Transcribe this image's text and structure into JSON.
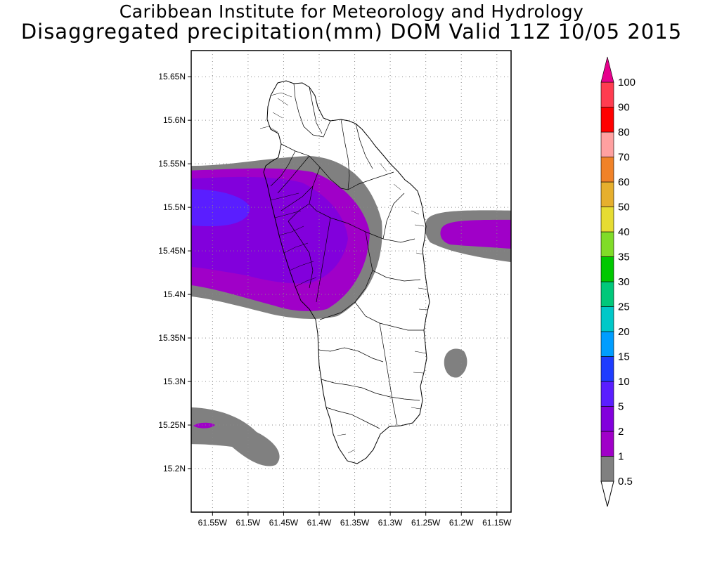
{
  "title": {
    "line1": "Caribbean Institute for Meteorology and Hydrology",
    "line2": "Disaggregated precipitation(mm) DOM Valid 11Z 10/05 2015"
  },
  "map": {
    "lon_range": [
      -61.58,
      -61.13
    ],
    "lat_range": [
      15.15,
      15.68
    ],
    "lat_ticks": [
      {
        "value": 15.65,
        "label": "15.65N"
      },
      {
        "value": 15.6,
        "label": "15.6N"
      },
      {
        "value": 15.55,
        "label": "15.55N"
      },
      {
        "value": 15.5,
        "label": "15.5N"
      },
      {
        "value": 15.45,
        "label": "15.45N"
      },
      {
        "value": 15.4,
        "label": "15.4N"
      },
      {
        "value": 15.35,
        "label": "15.35N"
      },
      {
        "value": 15.3,
        "label": "15.3N"
      },
      {
        "value": 15.25,
        "label": "15.25N"
      },
      {
        "value": 15.2,
        "label": "15.2N"
      }
    ],
    "lon_ticks": [
      {
        "value": -61.55,
        "label": "61.55W"
      },
      {
        "value": -61.5,
        "label": "61.5W"
      },
      {
        "value": -61.45,
        "label": "61.45W"
      },
      {
        "value": -61.4,
        "label": "61.4W"
      },
      {
        "value": -61.35,
        "label": "61.35W"
      },
      {
        "value": -61.3,
        "label": "61.3W"
      },
      {
        "value": -61.25,
        "label": "61.25W"
      },
      {
        "value": -61.2,
        "label": "61.2W"
      },
      {
        "value": -61.15,
        "label": "61.15W"
      }
    ],
    "grid": true,
    "island": "Dominica"
  },
  "colorbar": {
    "position": "right",
    "levels": [
      "0.5",
      "1",
      "2",
      "5",
      "10",
      "15",
      "20",
      "25",
      "30",
      "35",
      "40",
      "50",
      "60",
      "70",
      "80",
      "90",
      "100"
    ],
    "colors": [
      "#808080",
      "#a000c8",
      "#8200dc",
      "#5a1eff",
      "#1e3cff",
      "#009dff",
      "#00c8c8",
      "#00c87a",
      "#00c800",
      "#80dc28",
      "#e6dc32",
      "#e6af2d",
      "#f08228",
      "#ffa0a0",
      "#ff0000",
      "#ff3c50",
      "#e6008c"
    ]
  },
  "colors": {
    "band_0_5": "#808080",
    "band_1": "#a000c8",
    "band_2": "#8200dc",
    "band_5": "#5a1eff",
    "coastline": "#000000"
  }
}
